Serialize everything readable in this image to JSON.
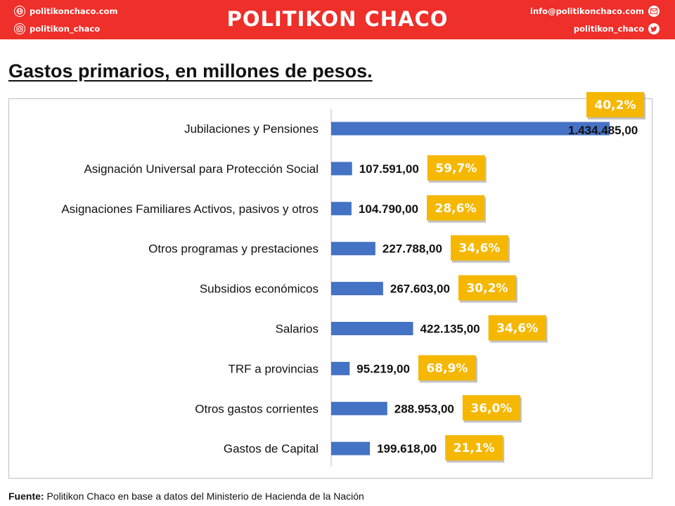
{
  "header": {
    "title": "POLITIKON CHACO",
    "website": "politikonchaco.com",
    "instagram": "politikon_chaco",
    "email": "info@politikonchaco.com",
    "twitter": "politikon_chaco",
    "brand_color": "#ee2f2a"
  },
  "page_title": "Gastos primarios, en millones de pesos.",
  "source": {
    "label": "Fuente:",
    "text": "Politikon Chaco en base a datos del Ministerio de Hacienda de la Nación"
  },
  "chart_data": {
    "type": "bar",
    "orientation": "horizontal",
    "bar_color": "#4472c4",
    "badge_color": "#f5b700",
    "categories": [
      "Jubilaciones y Pensiones",
      "Asignación Universal para Protección Social",
      "Asignaciones Familiares Activos, pasivos y otros",
      "Otros programas y prestaciones",
      "Subsidios económicos",
      "Salarios",
      "TRF a provincias",
      "Otros gastos corrientes",
      "Gastos de Capital"
    ],
    "values": [
      1434485,
      107591,
      104790,
      227788,
      267603,
      422135,
      95219,
      288953,
      199618
    ],
    "value_labels": [
      "1.434.485,00",
      "107.591,00",
      "104.790,00",
      "227.788,00",
      "267.603,00",
      "422.135,00",
      "95.219,00",
      "288.953,00",
      "199.618,00"
    ],
    "growth_labels": [
      "40,2%",
      "59,7%",
      "28,6%",
      "34,6%",
      "30,2%",
      "34,6%",
      "68,9%",
      "36,0%",
      "21,1%"
    ],
    "xlim": [
      0,
      1434485
    ],
    "grid": false,
    "legend": "none"
  }
}
